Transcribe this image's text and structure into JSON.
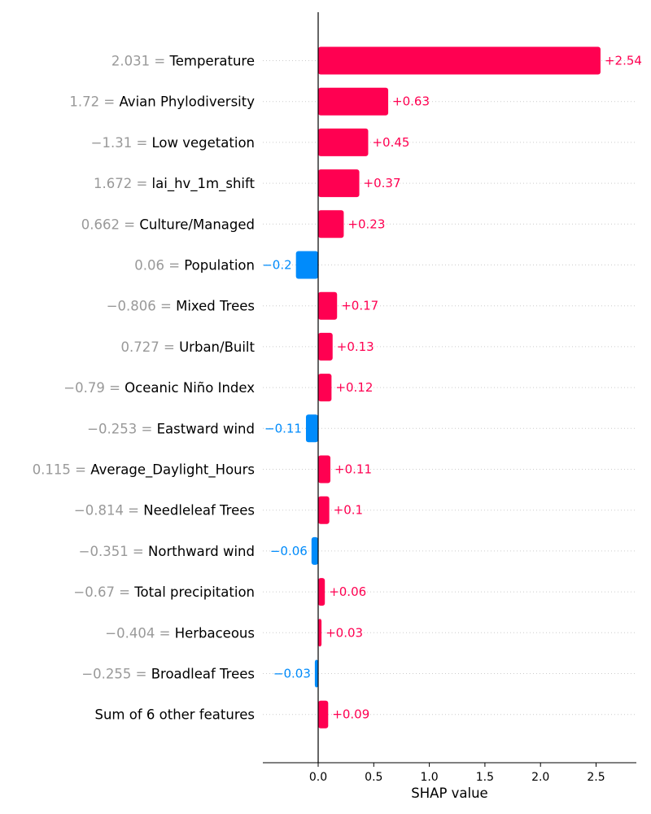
{
  "chart_data": {
    "type": "bar",
    "orientation": "horizontal",
    "xlabel": "SHAP value",
    "xlim": [
      -0.48,
      2.8
    ],
    "xticks": [
      "0.0",
      "0.5",
      "1.0",
      "1.5",
      "2.0",
      "2.5"
    ],
    "grid": "dotted horizontal row lines",
    "colors": {
      "positive": "#ff0051",
      "negative": "#008bfb",
      "feature_value": "#999999"
    },
    "features": [
      {
        "value": "2.031",
        "name": "Temperature",
        "shap": 2.54,
        "label": "+2.54"
      },
      {
        "value": "1.72",
        "name": "Avian Phylodiversity",
        "shap": 0.63,
        "label": "+0.63"
      },
      {
        "value": "−1.31",
        "name": "Low vegetation",
        "shap": 0.45,
        "label": "+0.45"
      },
      {
        "value": "1.672",
        "name": "lai_hv_1m_shift",
        "shap": 0.37,
        "label": "+0.37"
      },
      {
        "value": "0.662",
        "name": "Culture/Managed",
        "shap": 0.23,
        "label": "+0.23"
      },
      {
        "value": "0.06",
        "name": "Population",
        "shap": -0.2,
        "label": "−0.2"
      },
      {
        "value": "−0.806",
        "name": "Mixed Trees",
        "shap": 0.17,
        "label": "+0.17"
      },
      {
        "value": "0.727",
        "name": "Urban/Built",
        "shap": 0.13,
        "label": "+0.13"
      },
      {
        "value": "−0.79",
        "name": "Oceanic Niño Index",
        "shap": 0.12,
        "label": "+0.12"
      },
      {
        "value": "−0.253",
        "name": "Eastward wind",
        "shap": -0.11,
        "label": "−0.11"
      },
      {
        "value": "0.115",
        "name": "Average_Daylight_Hours",
        "shap": 0.11,
        "label": "+0.11"
      },
      {
        "value": "−0.814",
        "name": "Needleleaf Trees",
        "shap": 0.1,
        "label": "+0.1"
      },
      {
        "value": "−0.351",
        "name": "Northward wind",
        "shap": -0.06,
        "label": "−0.06"
      },
      {
        "value": "−0.67",
        "name": "Total precipitation",
        "shap": 0.06,
        "label": "+0.06"
      },
      {
        "value": "−0.404",
        "name": "Herbaceous",
        "shap": 0.03,
        "label": "+0.03"
      },
      {
        "value": "−0.255",
        "name": "Broadleaf Trees",
        "shap": -0.03,
        "label": "−0.03"
      },
      {
        "value": "",
        "name": "Sum of 6 other features",
        "shap": 0.09,
        "label": "+0.09"
      }
    ]
  }
}
